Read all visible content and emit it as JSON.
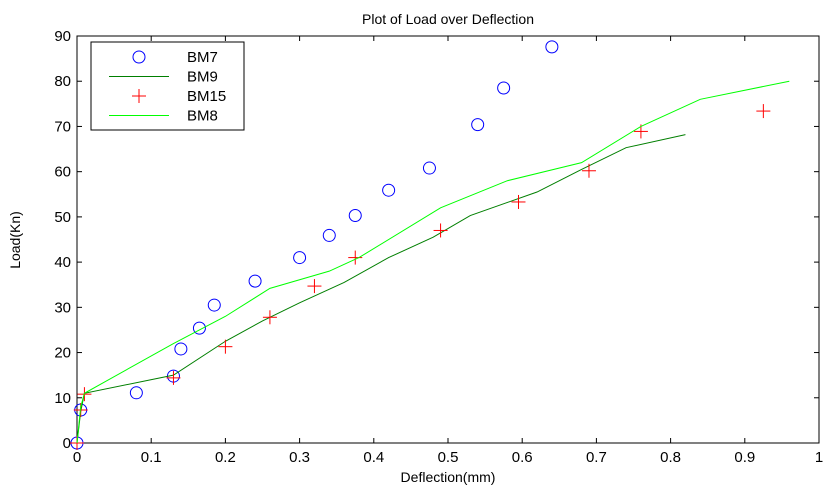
{
  "chart_data": {
    "type": "line",
    "title": "Plot of Load over Deflection",
    "xlabel": "Deflection(mm)",
    "ylabel": "Load(Kn)",
    "xlim": [
      0,
      1
    ],
    "ylim": [
      0,
      90
    ],
    "xticks": [
      0,
      0.1,
      0.2,
      0.3,
      0.4,
      0.5,
      0.6,
      0.7,
      0.8,
      0.9,
      1
    ],
    "xtick_labels": [
      "0",
      "0.1",
      "0.2",
      "0.3",
      "0.4",
      "0.5",
      "0.6",
      "0.7",
      "0.8",
      "0.9",
      "1"
    ],
    "yticks": [
      0,
      10,
      20,
      30,
      40,
      50,
      60,
      70,
      80,
      90
    ],
    "ytick_labels": [
      "0",
      "10",
      "20",
      "30",
      "40",
      "50",
      "60",
      "70",
      "80",
      "90"
    ],
    "grid": false,
    "legend_position": "top-left",
    "series": [
      {
        "name": "BM7",
        "style": "circle-marker",
        "color": "#0000ff",
        "x": [
          0,
          0.005,
          0.08,
          0.13,
          0.14,
          0.165,
          0.185,
          0.24,
          0.3,
          0.34,
          0.375,
          0.42,
          0.475,
          0.54,
          0.575,
          0.64
        ],
        "y": [
          0,
          7.3,
          11.1,
          14.8,
          20.8,
          25.4,
          30.5,
          35.8,
          41.0,
          45.9,
          50.3,
          55.9,
          60.8,
          70.4,
          78.5,
          87.6
        ]
      },
      {
        "name": "BM9",
        "style": "line",
        "color": "#007f00",
        "x": [
          0,
          0.005,
          0.01,
          0.13,
          0.2,
          0.25,
          0.3,
          0.36,
          0.42,
          0.48,
          0.53,
          0.62,
          0.68,
          0.74,
          0.82
        ],
        "y": [
          0,
          7,
          11,
          15,
          22.5,
          27,
          31,
          35.5,
          41,
          45.5,
          50.3,
          55.5,
          60.5,
          65.3,
          68.2
        ]
      },
      {
        "name": "BM15",
        "style": "plus-marker",
        "color": "#ff0000",
        "x": [
          0,
          0.005,
          0.01,
          0.13,
          0.2,
          0.26,
          0.32,
          0.375,
          0.49,
          0.595,
          0.69,
          0.76,
          0.925
        ],
        "y": [
          0,
          7.3,
          10.8,
          14.4,
          21.3,
          27.8,
          34.7,
          41.0,
          47.0,
          53.3,
          60.2,
          68.9,
          73.4
        ]
      },
      {
        "name": "BM8",
        "style": "line",
        "color": "#00ff00",
        "x": [
          0,
          0.005,
          0.01,
          0.13,
          0.2,
          0.26,
          0.34,
          0.38,
          0.49,
          0.58,
          0.68,
          0.76,
          0.84,
          0.96
        ],
        "y": [
          0,
          8,
          11,
          22,
          28,
          34.2,
          38,
          41,
          52,
          58,
          62,
          70,
          76,
          80
        ]
      }
    ]
  }
}
